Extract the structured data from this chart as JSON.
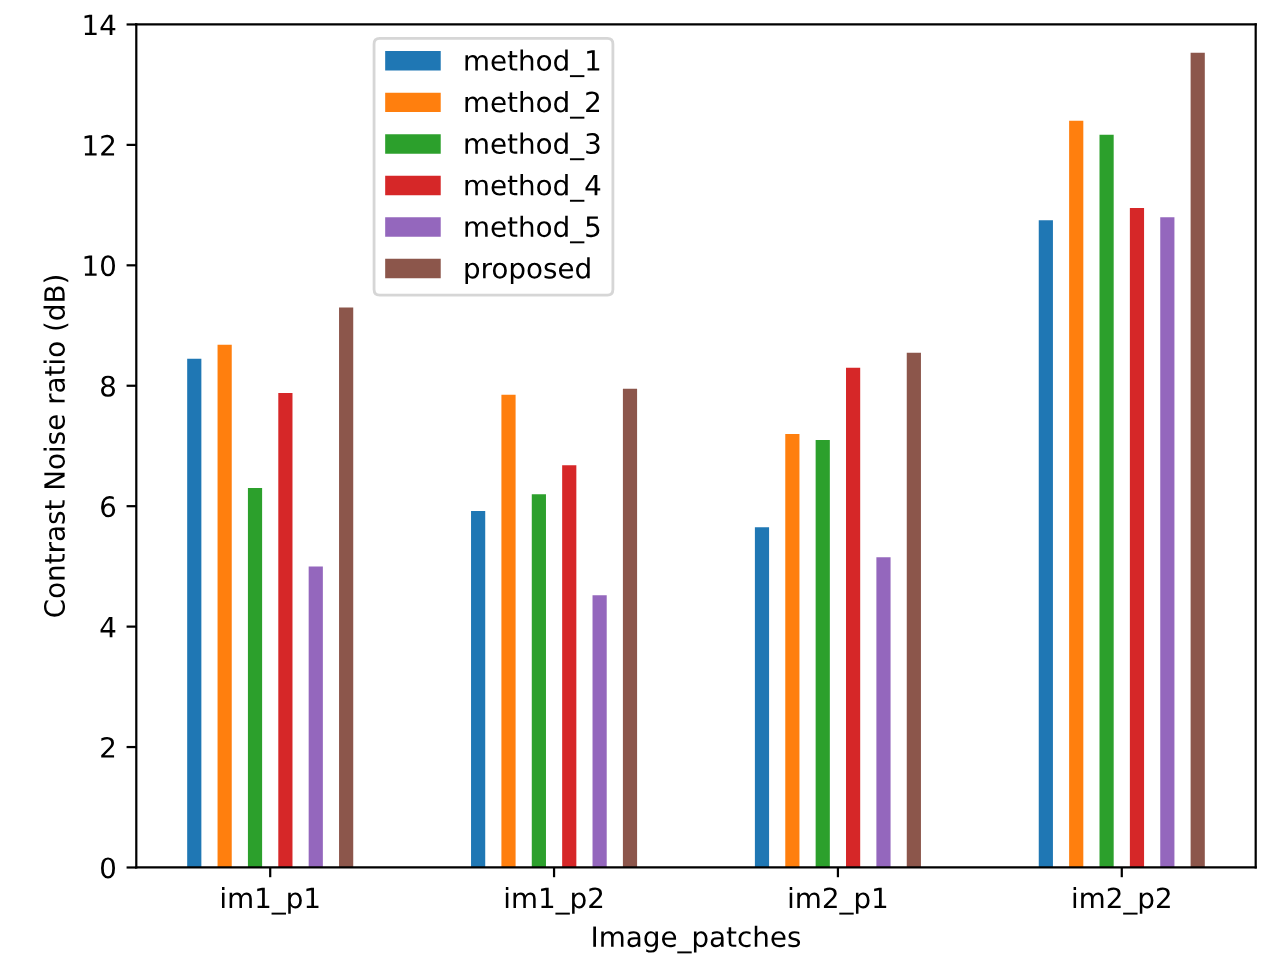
{
  "chart_data": {
    "type": "bar",
    "xlabel": "Image_patches",
    "ylabel": "Contrast Noise ratio (dB)",
    "categories": [
      "im1_p1",
      "im1_p2",
      "im2_p1",
      "im2_p2"
    ],
    "series": [
      {
        "name": "method_1",
        "color": "#1f77b4",
        "values": [
          8.45,
          5.92,
          5.65,
          10.75
        ]
      },
      {
        "name": "method_2",
        "color": "#ff7f0e",
        "values": [
          8.68,
          7.85,
          7.2,
          12.4
        ]
      },
      {
        "name": "method_3",
        "color": "#2ca02c",
        "values": [
          6.3,
          6.2,
          7.1,
          12.17
        ]
      },
      {
        "name": "method_4",
        "color": "#d62728",
        "values": [
          7.88,
          6.68,
          8.3,
          10.95
        ]
      },
      {
        "name": "method_5",
        "color": "#9467bd",
        "values": [
          5.0,
          4.52,
          5.15,
          10.8
        ]
      },
      {
        "name": "proposed",
        "color": "#8c564b",
        "values": [
          9.3,
          7.95,
          8.55,
          13.53
        ]
      }
    ],
    "ylim": [
      0,
      14
    ],
    "yticks": [
      0,
      2,
      4,
      6,
      8,
      10,
      12,
      14
    ],
    "legend": "top left",
    "grid": false
  }
}
